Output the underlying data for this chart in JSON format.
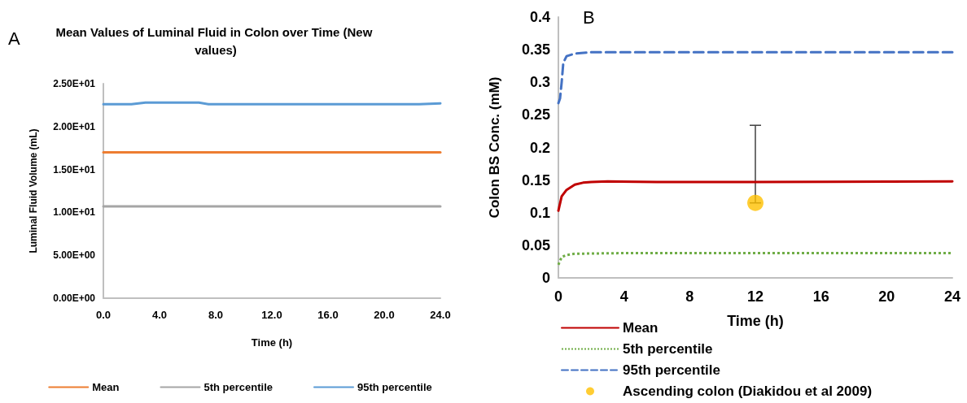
{
  "chart_data": [
    {
      "type": "line",
      "title": "Mean Values of Luminal Fluid in Colon over Time (New values)",
      "xlabel": "Time (h)",
      "ylabel": "Luminal Fluid Volume (mL)",
      "annotations": [
        "A"
      ],
      "xlim": [
        0,
        24
      ],
      "xticks": [
        {
          "value": 0,
          "label": "0.0"
        },
        {
          "value": 4,
          "label": "4.0"
        },
        {
          "value": 8,
          "label": "8.0"
        },
        {
          "value": 12,
          "label": "12.0"
        },
        {
          "value": 16,
          "label": "16.0"
        },
        {
          "value": 20,
          "label": "20.0"
        },
        {
          "value": 24,
          "label": "24.0"
        }
      ],
      "ylim": [
        0,
        25
      ],
      "yticks": [
        {
          "value": 0,
          "label": "0.00E+00"
        },
        {
          "value": 5,
          "label": "5.00E+00"
        },
        {
          "value": 10,
          "label": "1.00E+01"
        },
        {
          "value": 15,
          "label": "1.50E+01"
        },
        {
          "value": 20,
          "label": "2.00E+01"
        },
        {
          "value": 25,
          "label": "2.50E+01"
        }
      ],
      "grid": false,
      "legend": "bottom",
      "marker": "none",
      "series": [
        {
          "name": "Mean",
          "color": "#ed7d31",
          "x": [
            0,
            4,
            8,
            12,
            16,
            20,
            24
          ],
          "values": [
            17.0,
            17.0,
            17.0,
            17.0,
            17.0,
            17.0,
            17.0
          ]
        },
        {
          "name": "5th percentile",
          "color": "#a5a5a5",
          "x": [
            0,
            4,
            8,
            12,
            16,
            20,
            24
          ],
          "values": [
            10.7,
            10.7,
            10.7,
            10.7,
            10.7,
            10.7,
            10.7
          ]
        },
        {
          "name": "95th percentile",
          "color": "#5b9bd5",
          "x": [
            0,
            2,
            3,
            6.8,
            7.5,
            10,
            16,
            22.5,
            24
          ],
          "values": [
            22.6,
            22.6,
            22.8,
            22.8,
            22.6,
            22.6,
            22.6,
            22.6,
            22.7
          ]
        }
      ]
    },
    {
      "type": "line",
      "xlabel": "Time (h)",
      "ylabel": "Colon BS Conc. (mM)",
      "annotations": [
        "B"
      ],
      "xlim": [
        0,
        24
      ],
      "xticks": [
        0,
        4,
        8,
        12,
        16,
        20,
        24
      ],
      "ylim": [
        0,
        0.4
      ],
      "yticks": [
        0,
        0.05,
        0.1,
        0.15,
        0.2,
        0.25,
        0.3,
        0.35,
        0.4
      ],
      "grid": false,
      "legend": "bottom left",
      "series": [
        {
          "name": "Mean",
          "color": "#c00000",
          "line_style": "solid",
          "marker": "none",
          "x": [
            0,
            0.2,
            0.5,
            1,
            1.5,
            2,
            3,
            6,
            12,
            24
          ],
          "values": [
            0.103,
            0.125,
            0.135,
            0.143,
            0.146,
            0.147,
            0.148,
            0.147,
            0.147,
            0.148
          ]
        },
        {
          "name": "5th percentile",
          "color": "#70ad47",
          "line_style": "dotted",
          "marker": "none",
          "x": [
            0,
            0.2,
            0.5,
            1,
            4,
            24
          ],
          "values": [
            0.02,
            0.032,
            0.035,
            0.037,
            0.038,
            0.038
          ]
        },
        {
          "name": "95th percentile",
          "color": "#4472c4",
          "line_style": "dashed",
          "marker": "none",
          "x": [
            0,
            0.1,
            0.2,
            0.3,
            0.5,
            1,
            2,
            24
          ],
          "values": [
            0.268,
            0.275,
            0.3,
            0.33,
            0.34,
            0.344,
            0.346,
            0.346
          ]
        },
        {
          "name": "Ascending colon (Diakidou et al 2009)",
          "type": "scatter",
          "color": "#ffc000",
          "marker": "circle",
          "x": [
            12
          ],
          "values": [
            0.115
          ],
          "errors": [
            [
              0.115,
              0.234
            ]
          ]
        }
      ]
    }
  ]
}
